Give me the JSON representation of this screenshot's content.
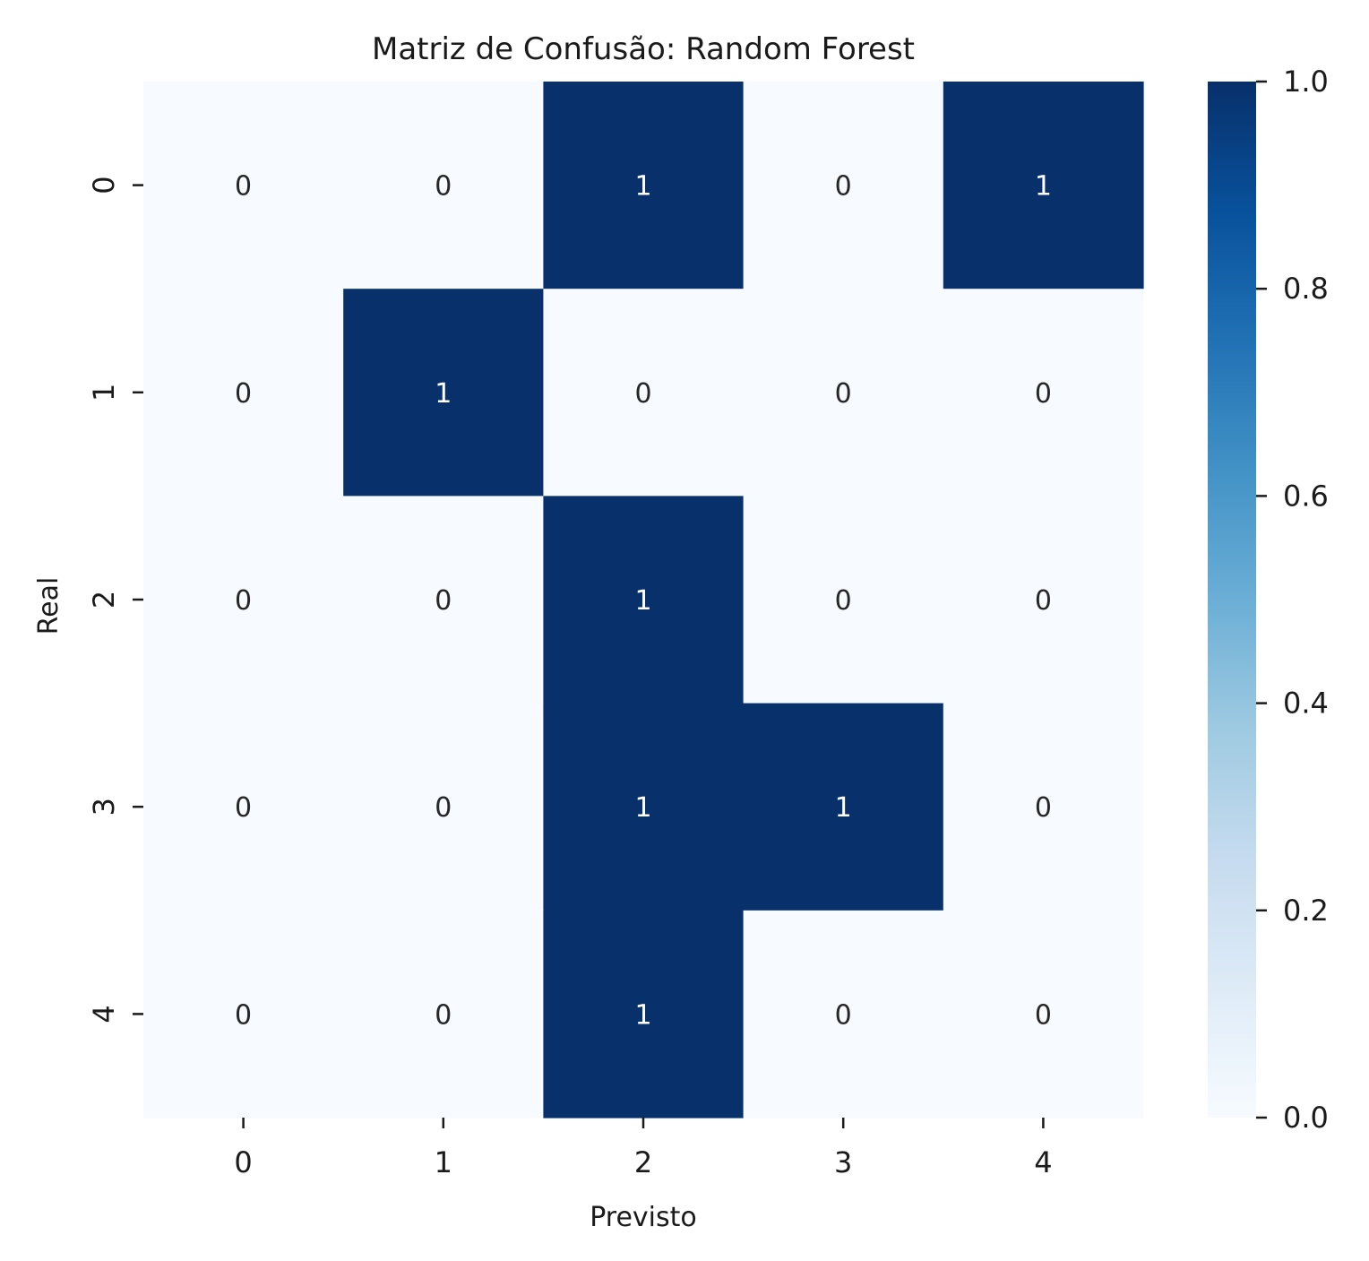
{
  "chart_data": {
    "type": "heatmap",
    "title": "Matriz de Confusão: Random Forest",
    "xlabel": "Previsto",
    "ylabel": "Real",
    "x_categories": [
      "0",
      "1",
      "2",
      "3",
      "4"
    ],
    "y_categories": [
      "0",
      "1",
      "2",
      "3",
      "4"
    ],
    "values": [
      [
        0,
        0,
        1,
        0,
        1
      ],
      [
        0,
        1,
        0,
        0,
        0
      ],
      [
        0,
        0,
        1,
        0,
        0
      ],
      [
        0,
        0,
        1,
        1,
        0
      ],
      [
        0,
        0,
        1,
        0,
        0
      ]
    ],
    "colorbar": {
      "min": 0.0,
      "max": 1.0,
      "ticks": [
        "0.0",
        "0.2",
        "0.4",
        "0.6",
        "0.8",
        "1.0"
      ],
      "colormap": "Blues",
      "colors": [
        "#f7fbff",
        "#deebf7",
        "#c6dbef",
        "#9ecae1",
        "#6baed6",
        "#4292c6",
        "#2171b5",
        "#08519c",
        "#08306b"
      ]
    },
    "annotation_colors": {
      "on_dark": "#ffffff",
      "on_light": "#262626"
    }
  }
}
